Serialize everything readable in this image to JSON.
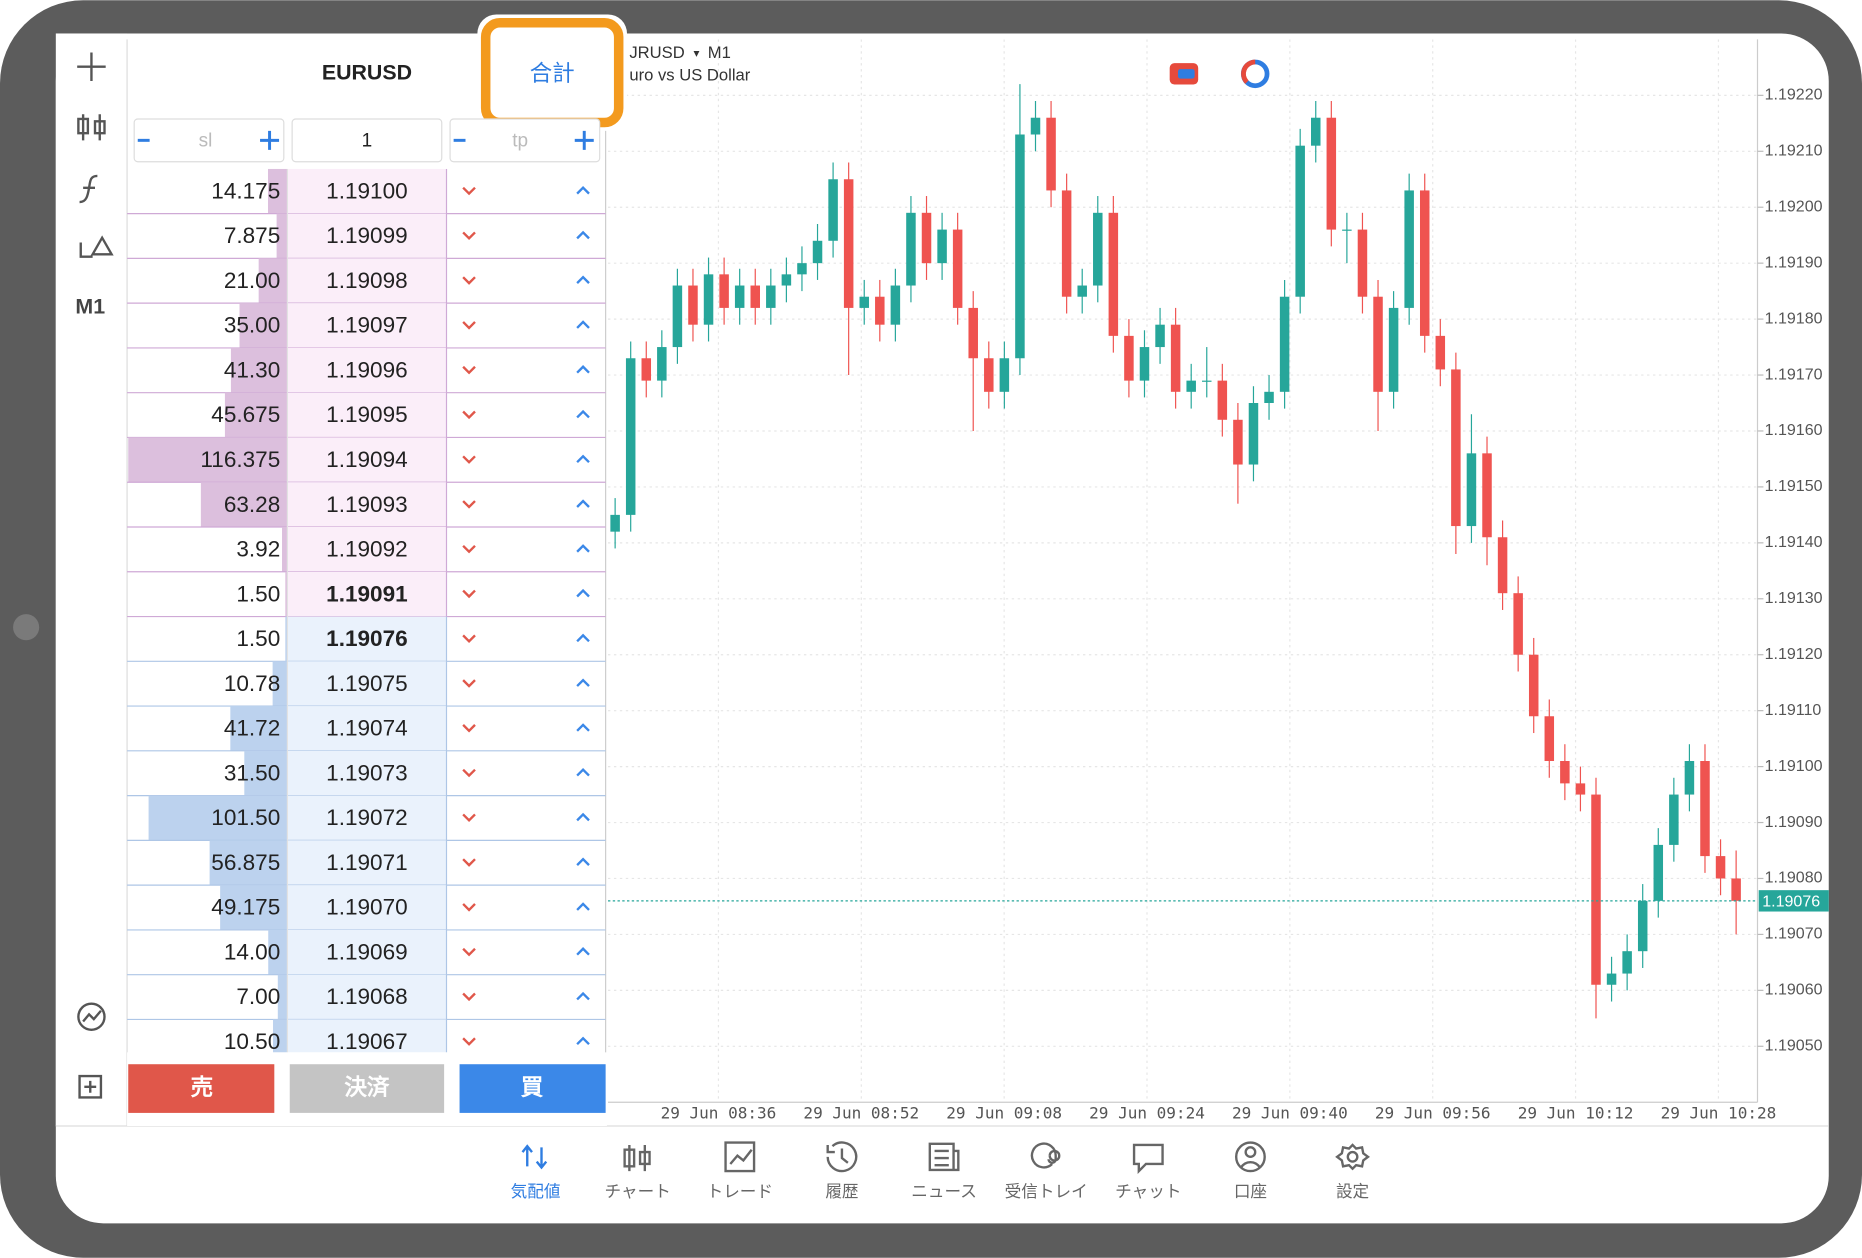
{
  "toolbar": {
    "timeframe": "M1"
  },
  "depth": {
    "symbol": "EURUSD",
    "total_button": "合計",
    "sl": "sl",
    "volume": "1",
    "tp": "tp",
    "rows": [
      {
        "volume": "14.175",
        "price": "1.19100",
        "side": "ask"
      },
      {
        "volume": "7.875",
        "price": "1.19099",
        "side": "ask"
      },
      {
        "volume": "21.00",
        "price": "1.19098",
        "side": "ask"
      },
      {
        "volume": "35.00",
        "price": "1.19097",
        "side": "ask"
      },
      {
        "volume": "41.30",
        "price": "1.19096",
        "side": "ask"
      },
      {
        "volume": "45.675",
        "price": "1.19095",
        "side": "ask"
      },
      {
        "volume": "116.375",
        "price": "1.19094",
        "side": "ask"
      },
      {
        "volume": "63.28",
        "price": "1.19093",
        "side": "ask"
      },
      {
        "volume": "3.92",
        "price": "1.19092",
        "side": "ask"
      },
      {
        "volume": "1.50",
        "price": "1.19091",
        "side": "ask"
      },
      {
        "volume": "1.50",
        "price": "1.19076",
        "side": "bid"
      },
      {
        "volume": "10.78",
        "price": "1.19075",
        "side": "bid"
      },
      {
        "volume": "41.72",
        "price": "1.19074",
        "side": "bid"
      },
      {
        "volume": "31.50",
        "price": "1.19073",
        "side": "bid"
      },
      {
        "volume": "101.50",
        "price": "1.19072",
        "side": "bid"
      },
      {
        "volume": "56.875",
        "price": "1.19071",
        "side": "bid"
      },
      {
        "volume": "49.175",
        "price": "1.19070",
        "side": "bid"
      },
      {
        "volume": "14.00",
        "price": "1.19069",
        "side": "bid"
      },
      {
        "volume": "7.00",
        "price": "1.19068",
        "side": "bid"
      },
      {
        "volume": "10.50",
        "price": "1.19067",
        "side": "bid"
      }
    ],
    "sell": "売",
    "close": "決済",
    "buy": "買"
  },
  "chart": {
    "type": "candlestick",
    "symbol": "JRUSD",
    "timeframe": "M1",
    "description": "uro vs US Dollar",
    "ylim": [
      1.1904,
      1.1923
    ],
    "yticks": [
      {
        "value": 1.1922,
        "label": "1.19220"
      },
      {
        "value": 1.1921,
        "label": "1.19210"
      },
      {
        "value": 1.192,
        "label": "1.19200"
      },
      {
        "value": 1.1919,
        "label": "1.19190"
      },
      {
        "value": 1.1918,
        "label": "1.19180"
      },
      {
        "value": 1.1917,
        "label": "1.19170"
      },
      {
        "value": 1.1916,
        "label": "1.19160"
      },
      {
        "value": 1.1915,
        "label": "1.19150"
      },
      {
        "value": 1.1914,
        "label": "1.19140"
      },
      {
        "value": 1.1913,
        "label": "1.19130"
      },
      {
        "value": 1.1912,
        "label": "1.19120"
      },
      {
        "value": 1.1911,
        "label": "1.19110"
      },
      {
        "value": 1.191,
        "label": "1.19100"
      },
      {
        "value": 1.1909,
        "label": "1.19090"
      },
      {
        "value": 1.1908,
        "label": "1.19080"
      },
      {
        "value": 1.1907,
        "label": "1.19070"
      },
      {
        "value": 1.1906,
        "label": "1.19060"
      },
      {
        "value": 1.1905,
        "label": "1.19050"
      }
    ],
    "current_price": 1.19076,
    "xticks": [
      "29 Jun 08:36",
      "29 Jun 08:52",
      "29 Jun 09:08",
      "29 Jun 09:24",
      "29 Jun 09:40",
      "29 Jun 09:56",
      "29 Jun 10:12",
      "29 Jun 10:28"
    ],
    "candles": [
      [
        1.19142,
        1.19148,
        1.19139,
        1.19145
      ],
      [
        1.19145,
        1.19176,
        1.19142,
        1.19173
      ],
      [
        1.19173,
        1.19176,
        1.19166,
        1.19169
      ],
      [
        1.19169,
        1.19178,
        1.19166,
        1.19175
      ],
      [
        1.19175,
        1.19189,
        1.19172,
        1.19186
      ],
      [
        1.19186,
        1.19189,
        1.19176,
        1.19179
      ],
      [
        1.19179,
        1.19191,
        1.19176,
        1.19188
      ],
      [
        1.19188,
        1.19191,
        1.19179,
        1.19182
      ],
      [
        1.19182,
        1.19189,
        1.19179,
        1.19186
      ],
      [
        1.19186,
        1.19189,
        1.19179,
        1.19182
      ],
      [
        1.19182,
        1.19189,
        1.19179,
        1.19186
      ],
      [
        1.19186,
        1.19191,
        1.19183,
        1.19188
      ],
      [
        1.19188,
        1.19193,
        1.19185,
        1.1919
      ],
      [
        1.1919,
        1.19197,
        1.19187,
        1.19194
      ],
      [
        1.19194,
        1.19208,
        1.19191,
        1.19205
      ],
      [
        1.19205,
        1.19208,
        1.1917,
        1.19182
      ],
      [
        1.19182,
        1.19187,
        1.19179,
        1.19184
      ],
      [
        1.19184,
        1.19187,
        1.19176,
        1.19179
      ],
      [
        1.19179,
        1.19189,
        1.19176,
        1.19186
      ],
      [
        1.19186,
        1.19202,
        1.19183,
        1.19199
      ],
      [
        1.19199,
        1.19202,
        1.19187,
        1.1919
      ],
      [
        1.1919,
        1.19199,
        1.19187,
        1.19196
      ],
      [
        1.19196,
        1.19199,
        1.19179,
        1.19182
      ],
      [
        1.19182,
        1.19185,
        1.1916,
        1.19173
      ],
      [
        1.19173,
        1.19176,
        1.19164,
        1.19167
      ],
      [
        1.19167,
        1.19176,
        1.19164,
        1.19173
      ],
      [
        1.19173,
        1.19222,
        1.1917,
        1.19213
      ],
      [
        1.19213,
        1.19219,
        1.1921,
        1.19216
      ],
      [
        1.19216,
        1.19219,
        1.192,
        1.19203
      ],
      [
        1.19203,
        1.19206,
        1.19181,
        1.19184
      ],
      [
        1.19184,
        1.19189,
        1.19181,
        1.19186
      ],
      [
        1.19186,
        1.19202,
        1.19183,
        1.19199
      ],
      [
        1.19199,
        1.19202,
        1.19174,
        1.19177
      ],
      [
        1.19177,
        1.1918,
        1.19166,
        1.19169
      ],
      [
        1.19169,
        1.19178,
        1.19166,
        1.19175
      ],
      [
        1.19175,
        1.19182,
        1.19172,
        1.19179
      ],
      [
        1.19179,
        1.19182,
        1.19164,
        1.19167
      ],
      [
        1.19167,
        1.19172,
        1.19164,
        1.19169
      ],
      [
        1.19169,
        1.19175,
        1.19166,
        1.19169
      ],
      [
        1.19169,
        1.19172,
        1.19159,
        1.19162
      ],
      [
        1.19162,
        1.19165,
        1.19147,
        1.19154
      ],
      [
        1.19154,
        1.19168,
        1.19151,
        1.19165
      ],
      [
        1.19165,
        1.1917,
        1.19162,
        1.19167
      ],
      [
        1.19167,
        1.19187,
        1.19164,
        1.19184
      ],
      [
        1.19184,
        1.19214,
        1.19181,
        1.19211
      ],
      [
        1.19211,
        1.19219,
        1.19208,
        1.19216
      ],
      [
        1.19216,
        1.19219,
        1.19193,
        1.19196
      ],
      [
        1.19196,
        1.19199,
        1.1919,
        1.19196
      ],
      [
        1.19196,
        1.19199,
        1.19181,
        1.19184
      ],
      [
        1.19184,
        1.19187,
        1.1916,
        1.19167
      ],
      [
        1.19167,
        1.19185,
        1.19164,
        1.19182
      ],
      [
        1.19182,
        1.19206,
        1.19179,
        1.19203
      ],
      [
        1.19203,
        1.19206,
        1.19174,
        1.19177
      ],
      [
        1.19177,
        1.1918,
        1.19168,
        1.19171
      ],
      [
        1.19171,
        1.19174,
        1.19138,
        1.19143
      ],
      [
        1.19143,
        1.19163,
        1.1914,
        1.19156
      ],
      [
        1.19156,
        1.19159,
        1.19136,
        1.19141
      ],
      [
        1.19141,
        1.19144,
        1.19128,
        1.19131
      ],
      [
        1.19131,
        1.19134,
        1.19117,
        1.1912
      ],
      [
        1.1912,
        1.19123,
        1.19106,
        1.19109
      ],
      [
        1.19109,
        1.19112,
        1.19098,
        1.19101
      ],
      [
        1.19101,
        1.19104,
        1.19094,
        1.19097
      ],
      [
        1.19097,
        1.191,
        1.19092,
        1.19095
      ],
      [
        1.19095,
        1.19098,
        1.19055,
        1.19061
      ],
      [
        1.19061,
        1.19066,
        1.19058,
        1.19063
      ],
      [
        1.19063,
        1.1907,
        1.1906,
        1.19067
      ],
      [
        1.19067,
        1.19079,
        1.19064,
        1.19076
      ],
      [
        1.19076,
        1.19089,
        1.19073,
        1.19086
      ],
      [
        1.19086,
        1.19098,
        1.19083,
        1.19095
      ],
      [
        1.19095,
        1.19104,
        1.19092,
        1.19101
      ],
      [
        1.19101,
        1.19104,
        1.19081,
        1.19084
      ],
      [
        1.19084,
        1.19087,
        1.19077,
        1.1908
      ],
      [
        1.1908,
        1.19085,
        1.1907,
        1.19076
      ]
    ]
  },
  "tabs": [
    {
      "label": "気配値",
      "active": true
    },
    {
      "label": "チャート",
      "active": false
    },
    {
      "label": "トレード",
      "active": false
    },
    {
      "label": "履歴",
      "active": false
    },
    {
      "label": "ニュース",
      "active": false
    },
    {
      "label": "受信トレイ",
      "active": false
    },
    {
      "label": "チャット",
      "active": false
    },
    {
      "label": "口座",
      "active": false
    },
    {
      "label": "設定",
      "active": false
    }
  ]
}
